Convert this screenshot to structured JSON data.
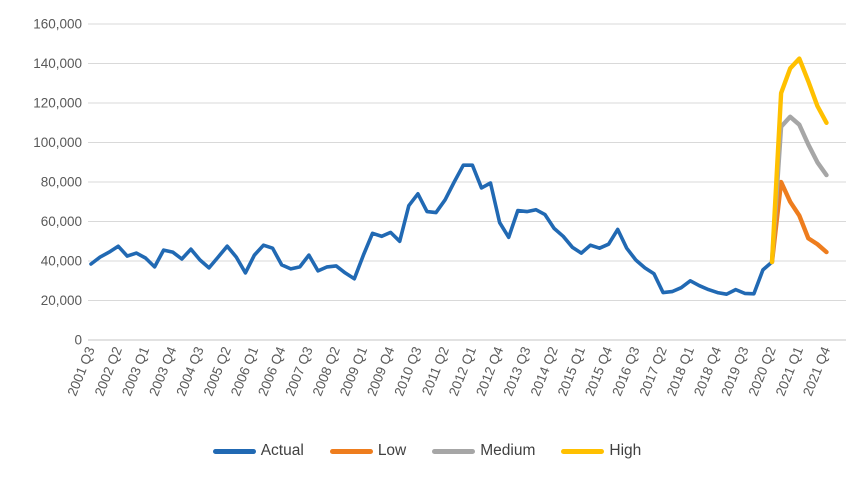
{
  "chart_data": {
    "type": "line",
    "title": "",
    "xlabel": "",
    "ylabel": "",
    "y_axis": {
      "min": 0,
      "max": 160000,
      "step": 20000,
      "tick_labels": [
        "0",
        "20,000",
        "40,000",
        "60,000",
        "80,000",
        "100,000",
        "120,000",
        "140,000",
        "160,000"
      ]
    },
    "grid": "horizontal",
    "gridline_color": "#D9D9D9",
    "axis_label_color": "#595959",
    "legend_position": "bottom",
    "categories": [
      "2001 Q3",
      "2001 Q4",
      "2002 Q1",
      "2002 Q2",
      "2002 Q3",
      "2002 Q4",
      "2003 Q1",
      "2003 Q2",
      "2003 Q3",
      "2003 Q4",
      "2004 Q1",
      "2004 Q2",
      "2004 Q3",
      "2004 Q4",
      "2005 Q1",
      "2005 Q2",
      "2005 Q3",
      "2005 Q4",
      "2006 Q1",
      "2006 Q2",
      "2006 Q3",
      "2006 Q4",
      "2007 Q1",
      "2007 Q2",
      "2007 Q3",
      "2007 Q4",
      "2008 Q1",
      "2008 Q2",
      "2008 Q3",
      "2008 Q4",
      "2009 Q1",
      "2009 Q2",
      "2009 Q3",
      "2009 Q4",
      "2010 Q1",
      "2010 Q2",
      "2010 Q3",
      "2010 Q4",
      "2011 Q1",
      "2011 Q2",
      "2011 Q3",
      "2011 Q4",
      "2012 Q1",
      "2012 Q2",
      "2012 Q3",
      "2012 Q4",
      "2013 Q1",
      "2013 Q2",
      "2013 Q3",
      "2013 Q4",
      "2014 Q1",
      "2014 Q2",
      "2014 Q3",
      "2014 Q4",
      "2015 Q1",
      "2015 Q2",
      "2015 Q3",
      "2015 Q4",
      "2016 Q1",
      "2016 Q2",
      "2016 Q3",
      "2016 Q4",
      "2017 Q1",
      "2017 Q2",
      "2017 Q3",
      "2017 Q4",
      "2018 Q1",
      "2018 Q2",
      "2018 Q3",
      "2018 Q4",
      "2019 Q1",
      "2019 Q2",
      "2019 Q3",
      "2019 Q4",
      "2020 Q1",
      "2020 Q2",
      "2020 Q3",
      "2020 Q4",
      "2021 Q1",
      "2021 Q2",
      "2021 Q3",
      "2021 Q4"
    ],
    "x_tick_labels": [
      "2001 Q3",
      "2002 Q2",
      "2003 Q1",
      "2003 Q4",
      "2004 Q3",
      "2005 Q2",
      "2006 Q1",
      "2006 Q4",
      "2007 Q3",
      "2008 Q2",
      "2009 Q1",
      "2009 Q4",
      "2010 Q3",
      "2011 Q2",
      "2012 Q1",
      "2012 Q4",
      "2013 Q3",
      "2014 Q2",
      "2015 Q1",
      "2015 Q4",
      "2016 Q3",
      "2017 Q2",
      "2018 Q1",
      "2018 Q4",
      "2019 Q3",
      "2020 Q2",
      "2021 Q1",
      "2021 Q4"
    ],
    "x_tick_every": 3,
    "series": [
      {
        "name": "Actual",
        "color": "#2169B3",
        "stroke_width": 3.6,
        "start_index": 0,
        "values": [
          38500,
          42000,
          44500,
          47500,
          42500,
          44000,
          41500,
          37000,
          45500,
          44500,
          41000,
          46000,
          40500,
          36500,
          42000,
          47500,
          42000,
          34000,
          43000,
          48000,
          46500,
          38000,
          36000,
          37000,
          43000,
          35000,
          37000,
          37500,
          34000,
          31000,
          43000,
          54000,
          52500,
          54500,
          50000,
          68000,
          74000,
          65000,
          64500,
          71000,
          80000,
          88500,
          88500,
          77000,
          79500,
          59500,
          52000,
          65500,
          65000,
          66000,
          63500,
          56500,
          52500,
          47000,
          44000,
          48000,
          46500,
          48500,
          56000,
          46500,
          40500,
          36500,
          33500,
          24000,
          24500,
          26500,
          30000,
          27500,
          25500,
          24000,
          23200,
          25500,
          23600,
          23400,
          35500,
          39500
        ]
      },
      {
        "name": "Low",
        "color": "#EE7D1E",
        "stroke_width": 4.4,
        "start_index": 75,
        "values": [
          39500,
          80000,
          70000,
          63000,
          51500,
          48500,
          44500
        ]
      },
      {
        "name": "Medium",
        "color": "#A6A6A6",
        "stroke_width": 4.4,
        "start_index": 75,
        "values": [
          39500,
          108000,
          113000,
          109000,
          99000,
          90000,
          83500
        ]
      },
      {
        "name": "High",
        "color": "#FFC000",
        "stroke_width": 4.4,
        "start_index": 75,
        "values": [
          39500,
          125000,
          137500,
          142500,
          131000,
          118500,
          110000
        ]
      }
    ]
  }
}
